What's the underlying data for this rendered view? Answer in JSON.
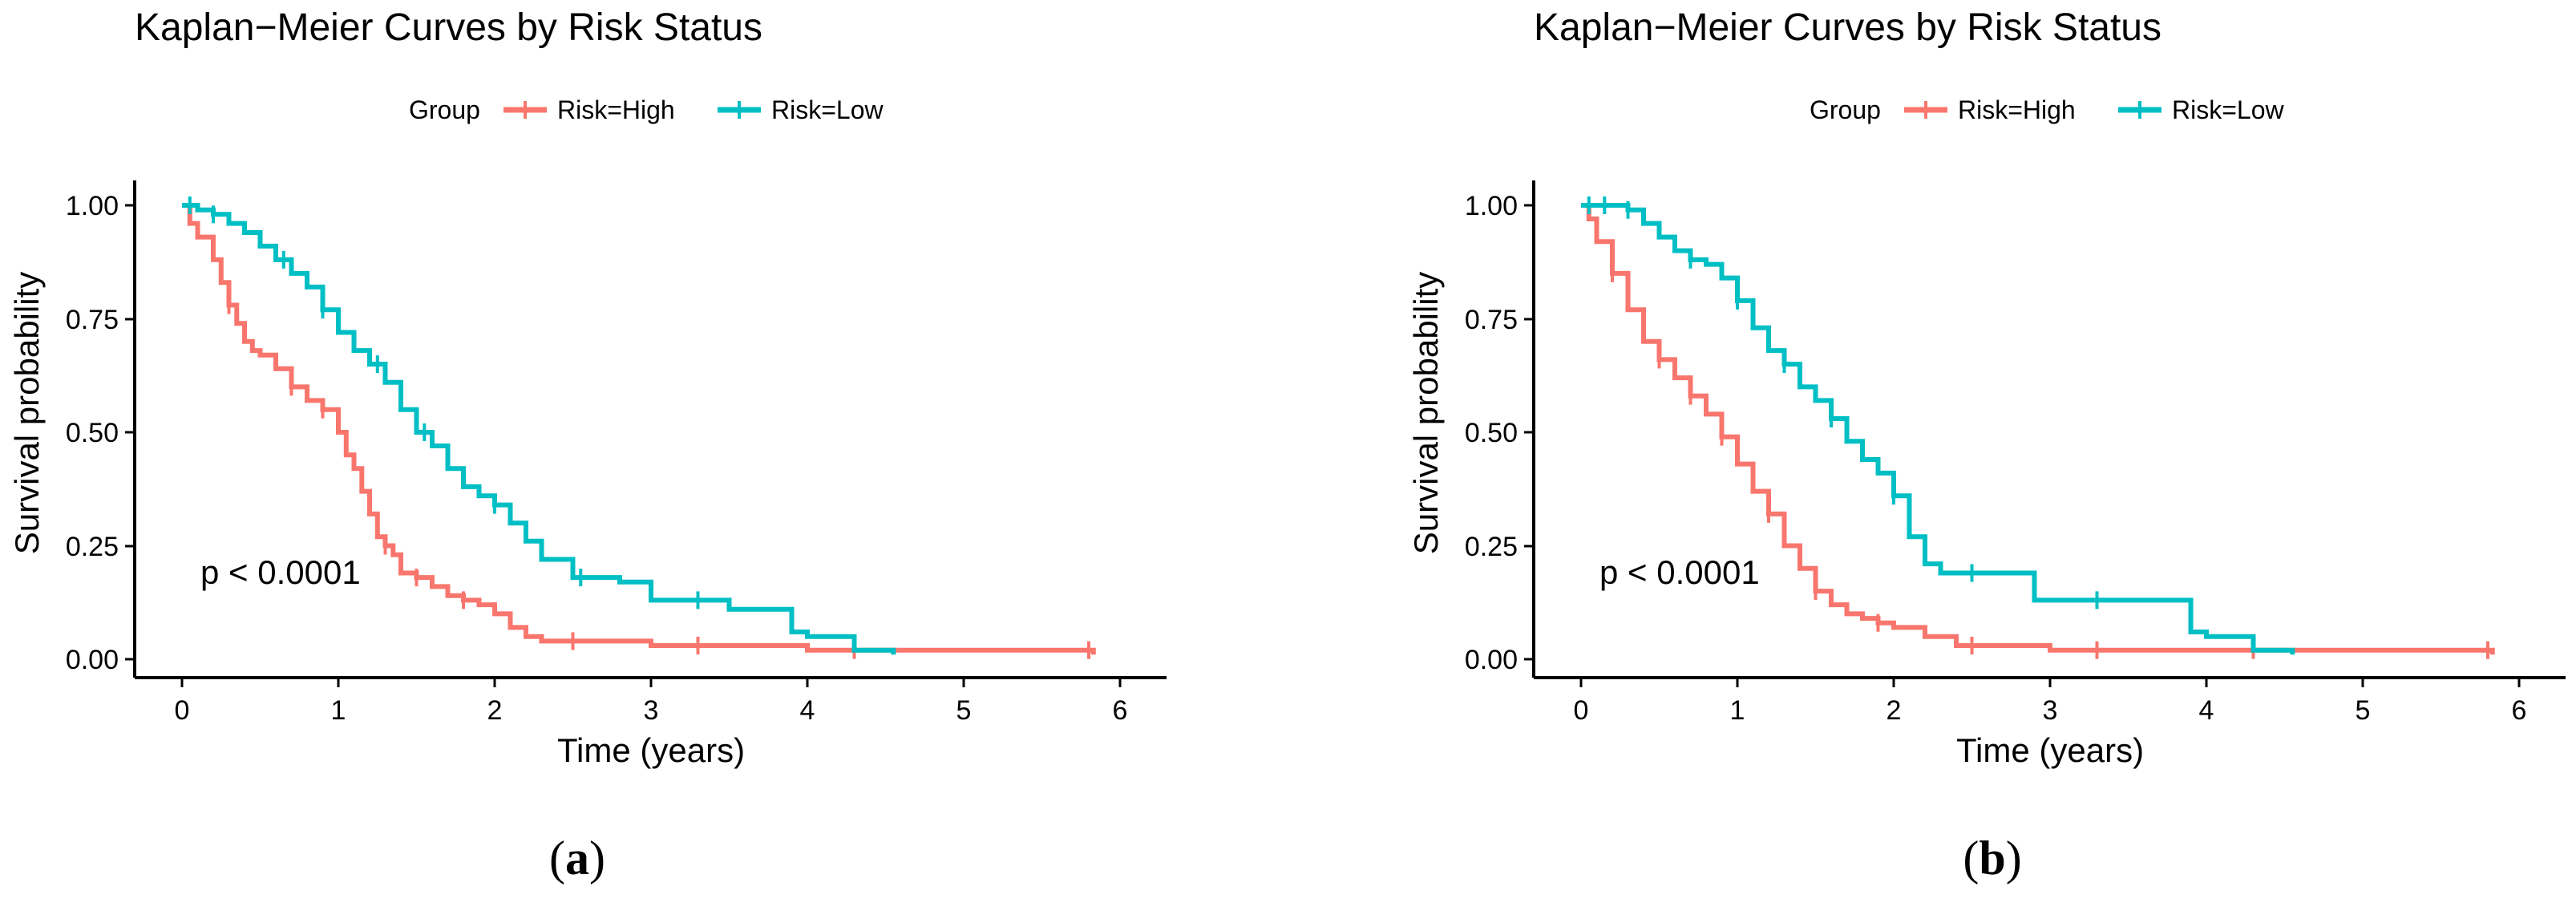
{
  "chart_data": [
    {
      "type": "line",
      "panel_label": "(a)",
      "panel_letter": "a",
      "title": "Kaplan−Meier Curves by Risk Status",
      "legend_title": "Group",
      "legend_position": "top",
      "xlabel": "Time (years)",
      "ylabel": "Survival probability",
      "xlim": [
        0,
        6
      ],
      "ylim": [
        0,
        1
      ],
      "xticks": [
        "0",
        "1",
        "2",
        "3",
        "4",
        "5",
        "6"
      ],
      "yticks": [
        "0.00",
        "0.25",
        "0.50",
        "0.75",
        "1.00"
      ],
      "annotation": "p < 0.0001",
      "series": [
        {
          "name": "Risk=High",
          "color": "#F8766D",
          "x": [
            0,
            0.05,
            0.1,
            0.2,
            0.25,
            0.3,
            0.35,
            0.4,
            0.45,
            0.5,
            0.6,
            0.7,
            0.8,
            0.9,
            1.0,
            1.05,
            1.1,
            1.15,
            1.2,
            1.25,
            1.3,
            1.35,
            1.4,
            1.5,
            1.6,
            1.7,
            1.8,
            1.9,
            2.0,
            2.1,
            2.2,
            2.3,
            2.5,
            2.8,
            3.0,
            3.5,
            4.0,
            4.5,
            5.0,
            5.5,
            5.83
          ],
          "values": [
            1.0,
            0.96,
            0.93,
            0.88,
            0.83,
            0.78,
            0.74,
            0.7,
            0.68,
            0.67,
            0.64,
            0.6,
            0.57,
            0.55,
            0.5,
            0.45,
            0.42,
            0.37,
            0.32,
            0.27,
            0.25,
            0.23,
            0.19,
            0.18,
            0.16,
            0.14,
            0.13,
            0.12,
            0.1,
            0.07,
            0.05,
            0.04,
            0.04,
            0.04,
            0.03,
            0.03,
            0.02,
            0.02,
            0.02,
            0.02,
            0.01
          ],
          "censored_x": [
            0.3,
            0.7,
            0.9,
            1.3,
            1.5,
            1.8,
            2.5,
            3.3,
            4.3,
            5.8
          ]
        },
        {
          "name": "Risk=Low",
          "color": "#00BFC4",
          "x": [
            0,
            0.1,
            0.2,
            0.3,
            0.4,
            0.5,
            0.6,
            0.7,
            0.8,
            0.9,
            1.0,
            1.1,
            1.2,
            1.3,
            1.4,
            1.5,
            1.6,
            1.7,
            1.8,
            1.9,
            2.0,
            2.1,
            2.2,
            2.3,
            2.5,
            2.8,
            3.0,
            3.5,
            3.9,
            4.0,
            4.3,
            4.55
          ],
          "values": [
            1.0,
            0.99,
            0.98,
            0.96,
            0.94,
            0.91,
            0.88,
            0.85,
            0.82,
            0.77,
            0.72,
            0.68,
            0.65,
            0.61,
            0.55,
            0.5,
            0.47,
            0.42,
            0.38,
            0.36,
            0.34,
            0.3,
            0.26,
            0.22,
            0.18,
            0.17,
            0.13,
            0.11,
            0.06,
            0.05,
            0.02,
            0.01
          ],
          "censored_x": [
            0.05,
            0.2,
            0.65,
            0.9,
            1.25,
            1.55,
            2.0,
            2.55,
            3.3
          ]
        }
      ]
    },
    {
      "type": "line",
      "panel_label": "(b)",
      "panel_letter": "b",
      "title": "Kaplan−Meier Curves by Risk Status",
      "legend_title": "Group",
      "legend_position": "top",
      "xlabel": "Time (years)",
      "ylabel": "Survival probability",
      "xlim": [
        0,
        6
      ],
      "ylim": [
        0,
        1
      ],
      "xticks": [
        "0",
        "1",
        "2",
        "3",
        "4",
        "5",
        "6"
      ],
      "yticks": [
        "0.00",
        "0.25",
        "0.50",
        "0.75",
        "1.00"
      ],
      "annotation": "p < 0.0001",
      "series": [
        {
          "name": "Risk=High",
          "color": "#F8766D",
          "x": [
            0,
            0.05,
            0.1,
            0.2,
            0.3,
            0.4,
            0.5,
            0.6,
            0.7,
            0.8,
            0.9,
            1.0,
            1.1,
            1.2,
            1.3,
            1.4,
            1.5,
            1.6,
            1.7,
            1.8,
            1.9,
            2.0,
            2.2,
            2.4,
            3.0,
            3.5,
            4.0,
            4.5,
            5.0,
            5.5,
            5.83
          ],
          "values": [
            1.0,
            0.97,
            0.92,
            0.85,
            0.77,
            0.7,
            0.66,
            0.62,
            0.58,
            0.54,
            0.49,
            0.43,
            0.37,
            0.32,
            0.25,
            0.2,
            0.15,
            0.12,
            0.1,
            0.09,
            0.08,
            0.07,
            0.05,
            0.03,
            0.02,
            0.02,
            0.02,
            0.02,
            0.02,
            0.02,
            0.01
          ],
          "censored_x": [
            0.2,
            0.5,
            0.7,
            0.9,
            1.2,
            1.5,
            1.9,
            2.5,
            3.3,
            4.3,
            5.8
          ]
        },
        {
          "name": "Risk=Low",
          "color": "#00BFC4",
          "x": [
            0,
            0.3,
            0.4,
            0.5,
            0.6,
            0.7,
            0.8,
            0.9,
            1.0,
            1.1,
            1.2,
            1.3,
            1.4,
            1.5,
            1.6,
            1.7,
            1.8,
            1.9,
            2.0,
            2.1,
            2.2,
            2.3,
            2.5,
            2.9,
            3.0,
            3.5,
            3.9,
            4.0,
            4.3,
            4.55
          ],
          "values": [
            1.0,
            0.99,
            0.96,
            0.93,
            0.9,
            0.88,
            0.87,
            0.84,
            0.79,
            0.73,
            0.68,
            0.65,
            0.6,
            0.57,
            0.53,
            0.48,
            0.44,
            0.41,
            0.36,
            0.27,
            0.21,
            0.19,
            0.19,
            0.13,
            0.13,
            0.13,
            0.06,
            0.05,
            0.02,
            0.01
          ],
          "censored_x": [
            0.05,
            0.15,
            0.3,
            0.7,
            1.0,
            1.3,
            1.6,
            2.0,
            2.5,
            3.3
          ]
        }
      ]
    }
  ]
}
